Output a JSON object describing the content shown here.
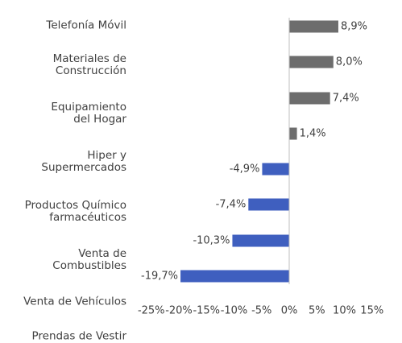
{
  "chart_data": {
    "type": "barh",
    "categories": [
      "Telefonía Móvil",
      "Materiales de\nConstrucción",
      "Equipamiento\ndel Hogar",
      "Hiper y\nSupermercados",
      "Productos Químico\nfarmacéuticos",
      "Venta de\nCombustibles",
      "Venta de Vehículos",
      "Prendas de Vestir"
    ],
    "values": [
      8.9,
      8.0,
      7.4,
      1.4,
      -4.9,
      -7.4,
      -10.3,
      -19.7
    ],
    "value_labels": [
      "8,9%",
      "8,0%",
      "7,4%",
      "1,4%",
      "-4,9%",
      "-7,4%",
      "-10,3%",
      "-19,7%"
    ],
    "colors": [
      "#6d6d6d",
      "#6d6d6d",
      "#6d6d6d",
      "#6d6d6d",
      "#3f5fbf",
      "#3f5fbf",
      "#3f5fbf",
      "#3f5fbf"
    ],
    "xlim": [
      -25,
      15
    ],
    "xticks": [
      {
        "value": -25,
        "label": "-25%"
      },
      {
        "value": -20,
        "label": "-20%"
      },
      {
        "value": -15,
        "label": "-15%"
      },
      {
        "value": -10,
        "label": "-10%"
      },
      {
        "value": -5,
        "label": "-5%"
      },
      {
        "value": 0,
        "label": "0%"
      },
      {
        "value": 5,
        "label": "5%"
      },
      {
        "value": 10,
        "label": "10%"
      },
      {
        "value": 15,
        "label": "15%"
      }
    ]
  }
}
